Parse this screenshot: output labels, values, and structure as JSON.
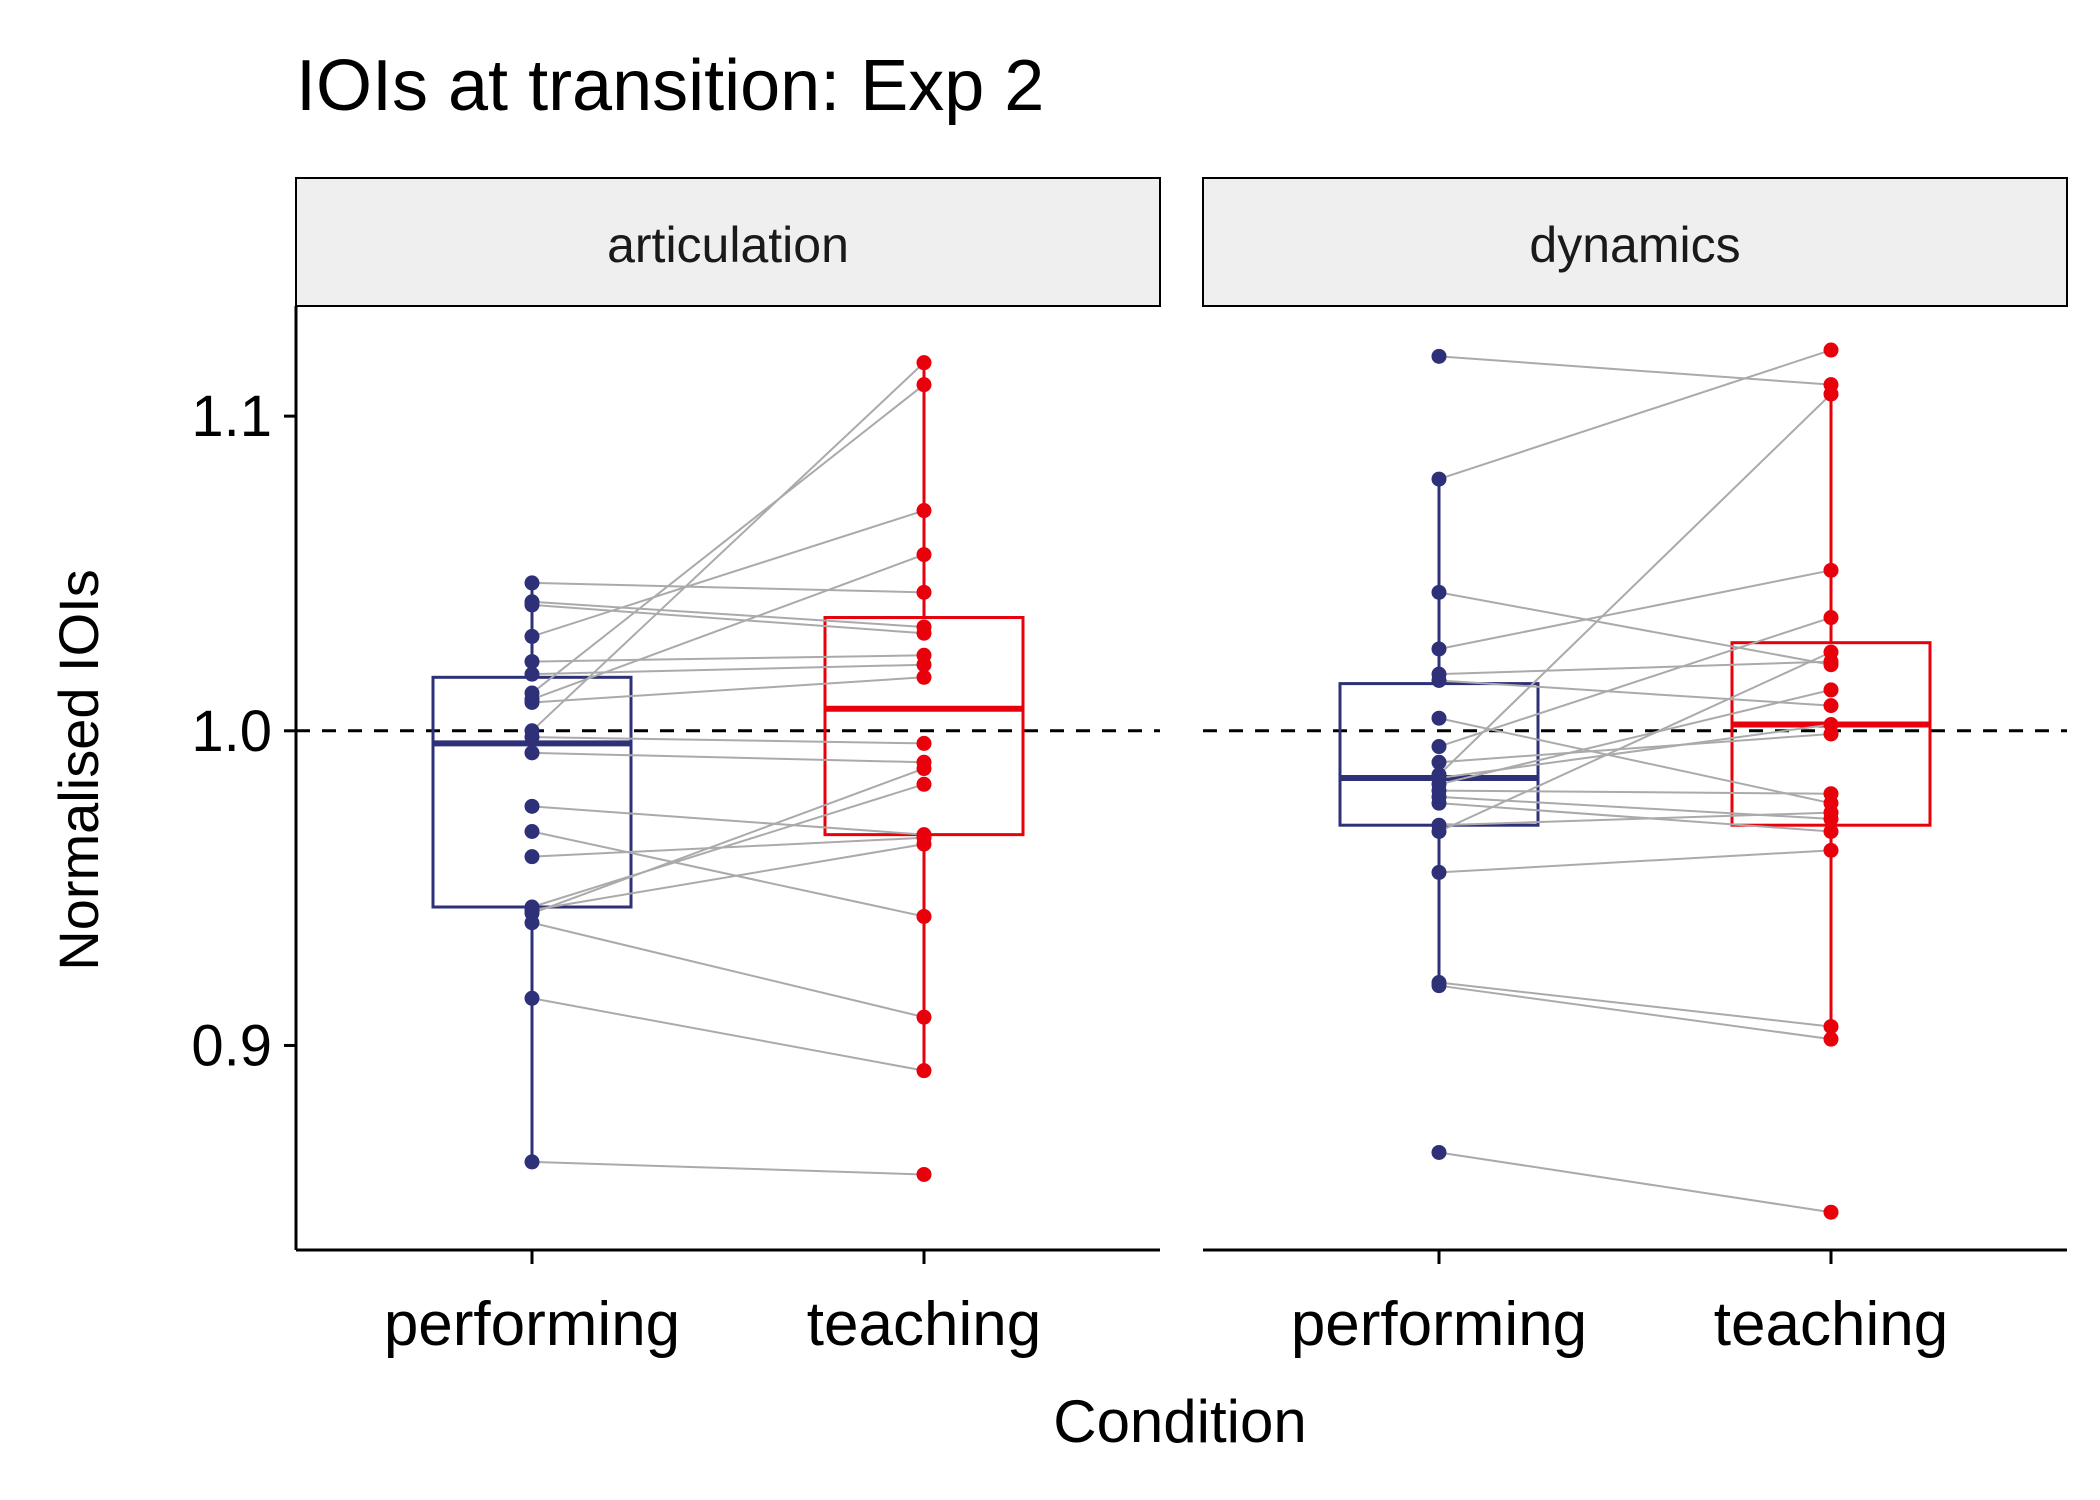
{
  "chart_data": {
    "type": "boxplot",
    "title": "IOIs at transition: Exp 2",
    "xlabel": "Condition",
    "ylabel": "Normalised IOIs",
    "ylim": [
      0.835,
      1.135
    ],
    "yticks": [
      0.9,
      1.0,
      1.1
    ],
    "ytick_labels": [
      "0.9",
      "1.0",
      "1.1"
    ],
    "reference_line": 1.0,
    "categories": [
      "performing",
      "teaching"
    ],
    "colors": {
      "performing": "#2E3178",
      "teaching": "#E8000B",
      "pair_line": "#AAAAAA",
      "strip": "#EFEFEF"
    },
    "panels": [
      {
        "label": "articulation",
        "boxes": [
          {
            "condition": "performing",
            "min": 0.863,
            "q1": 0.944,
            "median": 0.996,
            "q3": 1.017,
            "max": 1.047
          },
          {
            "condition": "teaching",
            "min": 0.892,
            "q1": 0.967,
            "median": 1.007,
            "q3": 1.036,
            "max": 1.116
          }
        ],
        "pairs": [
          [
            1.047,
            1.044
          ],
          [
            1.041,
            1.033
          ],
          [
            1.04,
            1.031
          ],
          [
            1.03,
            1.07
          ],
          [
            1.022,
            1.024
          ],
          [
            1.018,
            1.021
          ],
          [
            1.012,
            1.11
          ],
          [
            1.01,
            1.056
          ],
          [
            1.009,
            1.017
          ],
          [
            1.0,
            1.117
          ],
          [
            0.998,
            0.996
          ],
          [
            0.993,
            0.99
          ],
          [
            0.976,
            0.967
          ],
          [
            0.968,
            0.941
          ],
          [
            0.96,
            0.966
          ],
          [
            0.944,
            0.983
          ],
          [
            0.943,
            0.964
          ],
          [
            0.942,
            0.988
          ],
          [
            0.939,
            0.909
          ],
          [
            0.915,
            0.892
          ],
          [
            0.863,
            0.859
          ]
        ]
      },
      {
        "label": "dynamics",
        "boxes": [
          {
            "condition": "performing",
            "min": 0.92,
            "q1": 0.97,
            "median": 0.985,
            "q3": 1.015,
            "max": 1.08
          },
          {
            "condition": "teaching",
            "min": 0.902,
            "q1": 0.97,
            "median": 1.002,
            "q3": 1.028,
            "max": 1.106
          }
        ],
        "pairs": [
          [
            1.119,
            1.11
          ],
          [
            1.08,
            1.121
          ],
          [
            1.044,
            1.021
          ],
          [
            1.026,
            1.051
          ],
          [
            1.018,
            1.022
          ],
          [
            1.016,
            1.008
          ],
          [
            1.004,
            0.977
          ],
          [
            0.995,
            1.036
          ],
          [
            0.99,
            0.999
          ],
          [
            0.986,
            1.107
          ],
          [
            0.985,
            1.002
          ],
          [
            0.983,
            1.013
          ],
          [
            0.981,
            0.98
          ],
          [
            0.979,
            0.972
          ],
          [
            0.977,
            0.968
          ],
          [
            0.97,
            0.974
          ],
          [
            0.968,
            1.025
          ],
          [
            0.955,
            0.962
          ],
          [
            0.92,
            0.906
          ],
          [
            0.919,
            0.902
          ],
          [
            0.866,
            0.847
          ]
        ]
      }
    ]
  }
}
